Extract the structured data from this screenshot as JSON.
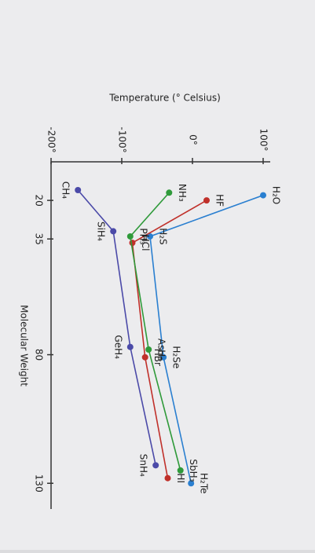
{
  "chart_data": {
    "type": "line",
    "title": "Temperature (° Celsius)",
    "x_label": "Molecular Weight",
    "xlim": [
      5,
      140
    ],
    "xticks": [
      20,
      35,
      80,
      130
    ],
    "ylim": [
      -200,
      110
    ],
    "yticks": [
      {
        "value": -200,
        "label": "-200°"
      },
      {
        "value": -100,
        "label": "-100°"
      },
      {
        "value": 0,
        "label": "0°"
      },
      {
        "value": 100,
        "label": "100°"
      }
    ],
    "series": [
      {
        "color": "#2a7fd0",
        "x": [
          18,
          34,
          81,
          130
        ],
        "values": [
          100,
          -60,
          -41,
          -2
        ],
        "labels": [
          "H₂O",
          "H₂S",
          "H₂Se",
          "H₂Te"
        ]
      },
      {
        "color": "#c0302a",
        "x": [
          20,
          36.5,
          81,
          128
        ],
        "values": [
          20,
          -85,
          -67,
          -35
        ],
        "labels": [
          "HF",
          "HCl",
          "HBr",
          "HI"
        ]
      },
      {
        "color": "#2f9a3a",
        "x": [
          17,
          34,
          78,
          125
        ],
        "values": [
          -33,
          -88,
          -62,
          -17
        ],
        "labels": [
          "NH₃",
          "PH₃",
          "AsH₃",
          "SbH₃"
        ]
      },
      {
        "color": "#4b4aa8",
        "x": [
          16,
          32,
          77,
          123
        ],
        "values": [
          -162,
          -112,
          -88,
          -52
        ],
        "labels": [
          "CH₄",
          "SiH₄",
          "GeH₄",
          "SnH₄"
        ]
      }
    ]
  }
}
